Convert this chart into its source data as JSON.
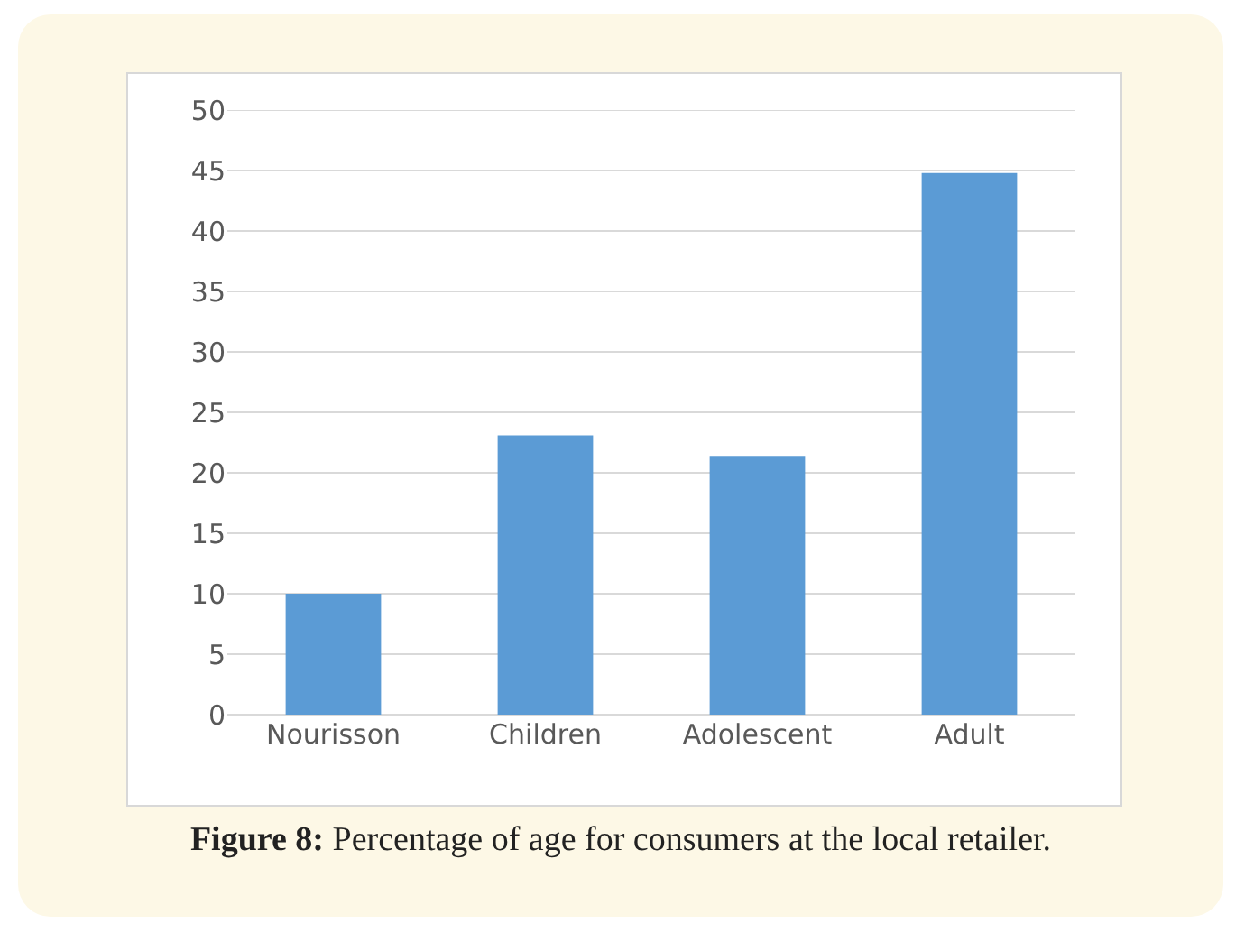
{
  "chart_data": {
    "type": "bar",
    "categories": [
      "Nourisson",
      "Children",
      "Adolescent",
      "Adult"
    ],
    "values": [
      10,
      23.1,
      21.4,
      44.8
    ],
    "color": "#5b9bd5",
    "ylim": [
      0,
      50
    ],
    "yticks": [
      0,
      5,
      10,
      15,
      20,
      25,
      30,
      35,
      40,
      45,
      50
    ],
    "grid": "y",
    "annotations": [
      "Figure 8: Percentage of age for consumers at the local retailer."
    ]
  }
}
